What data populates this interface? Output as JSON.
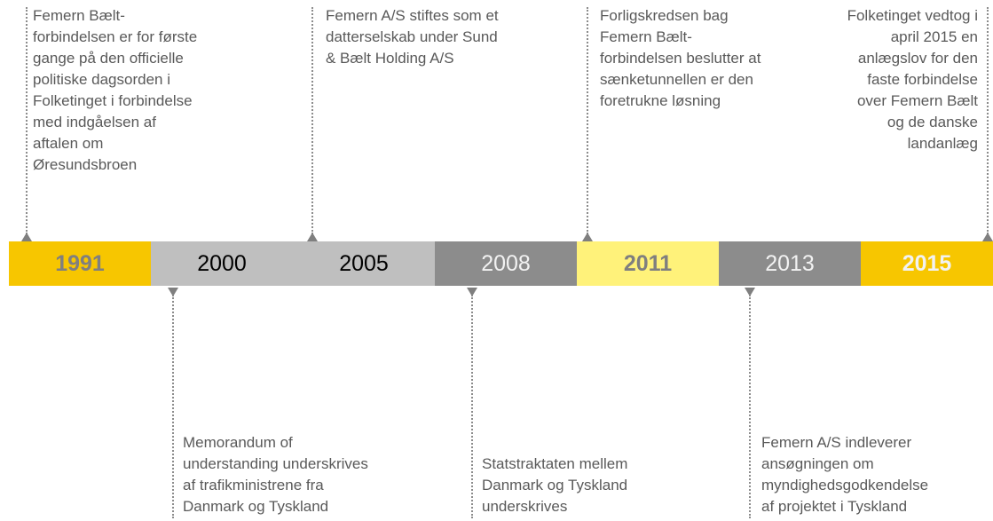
{
  "timeline": {
    "years": [
      "1991",
      "2000",
      "2005",
      "2008",
      "2011",
      "2013",
      "2015"
    ],
    "events_above": [
      {
        "lines": [
          "Femern Bælt-",
          "forbindelsen er for første",
          "gange på den officielle",
          "politiske dagsorden i",
          "Folketinget i forbindelse",
          "med indgåelsen af",
          "aftalen om",
          "Øresundsbroen"
        ]
      },
      {
        "lines": [
          "Femern A/S stiftes som et",
          "datterselskab under Sund",
          "& Bælt Holding A/S"
        ]
      },
      {
        "lines": [
          "Forligskredsen bag",
          "Femern Bælt-",
          "forbindelsen beslutter at",
          "sænketunnellen er den",
          "foretrukne løsning"
        ]
      },
      {
        "lines": [
          "Folketinget vedtog i",
          "april 2015 en",
          "anlægslov for den",
          "faste forbindelse",
          "over Femern Bælt",
          "og de danske",
          "landanlæg"
        ]
      }
    ],
    "events_below": [
      {
        "lines": [
          "Memorandum of",
          "understanding underskrives",
          "af trafikministrene fra",
          "Danmark og Tyskland"
        ]
      },
      {
        "lines": [
          "Statstraktaten mellem",
          "Danmark og Tyskland",
          "underskrives"
        ]
      },
      {
        "lines": [
          "Femern A/S indleverer",
          "ansøgningen om",
          "myndighedsgodkendelse",
          "af projektet i Tyskland"
        ]
      }
    ]
  }
}
